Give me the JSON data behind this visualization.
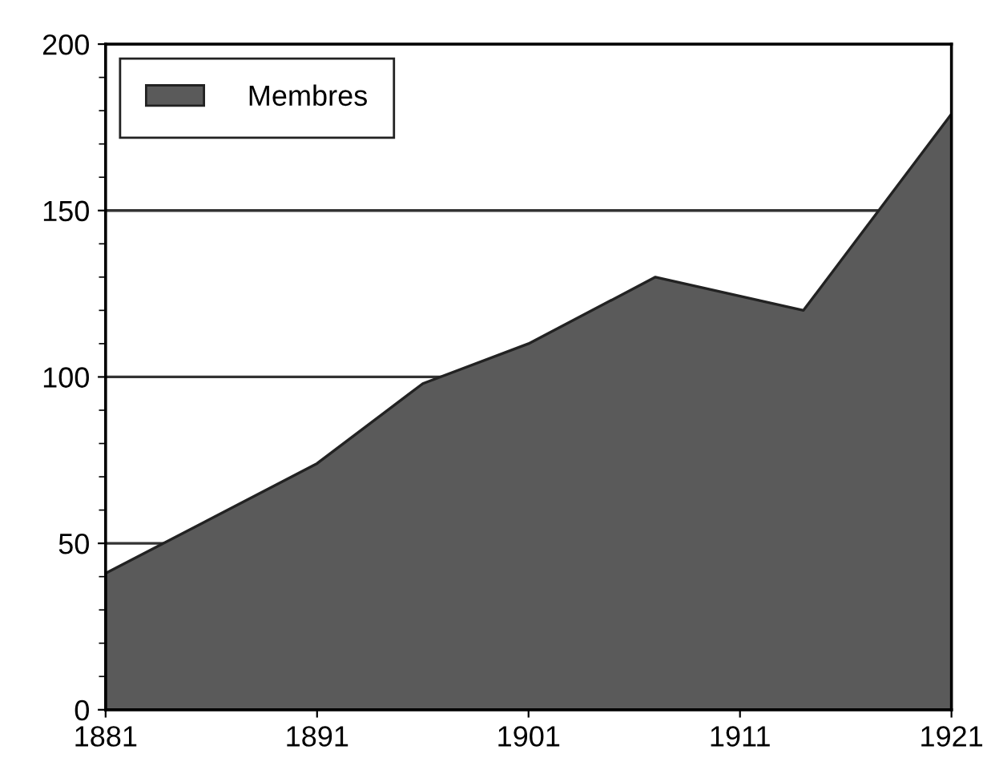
{
  "chart_data": {
    "type": "area",
    "x": [
      1881,
      1891,
      1896,
      1901,
      1907,
      1914,
      1921
    ],
    "series": [
      {
        "name": "Membres",
        "color": "#5a5a5a",
        "values": [
          41,
          74,
          98,
          110,
          130,
          120,
          179
        ]
      }
    ],
    "xlim": [
      1881,
      1921
    ],
    "xticks": [
      1881,
      1891,
      1901,
      1911,
      1921
    ],
    "ylim": [
      0,
      200
    ],
    "yticks": [
      0,
      50,
      100,
      150,
      200
    ],
    "grid": "y",
    "legend": "top left"
  }
}
